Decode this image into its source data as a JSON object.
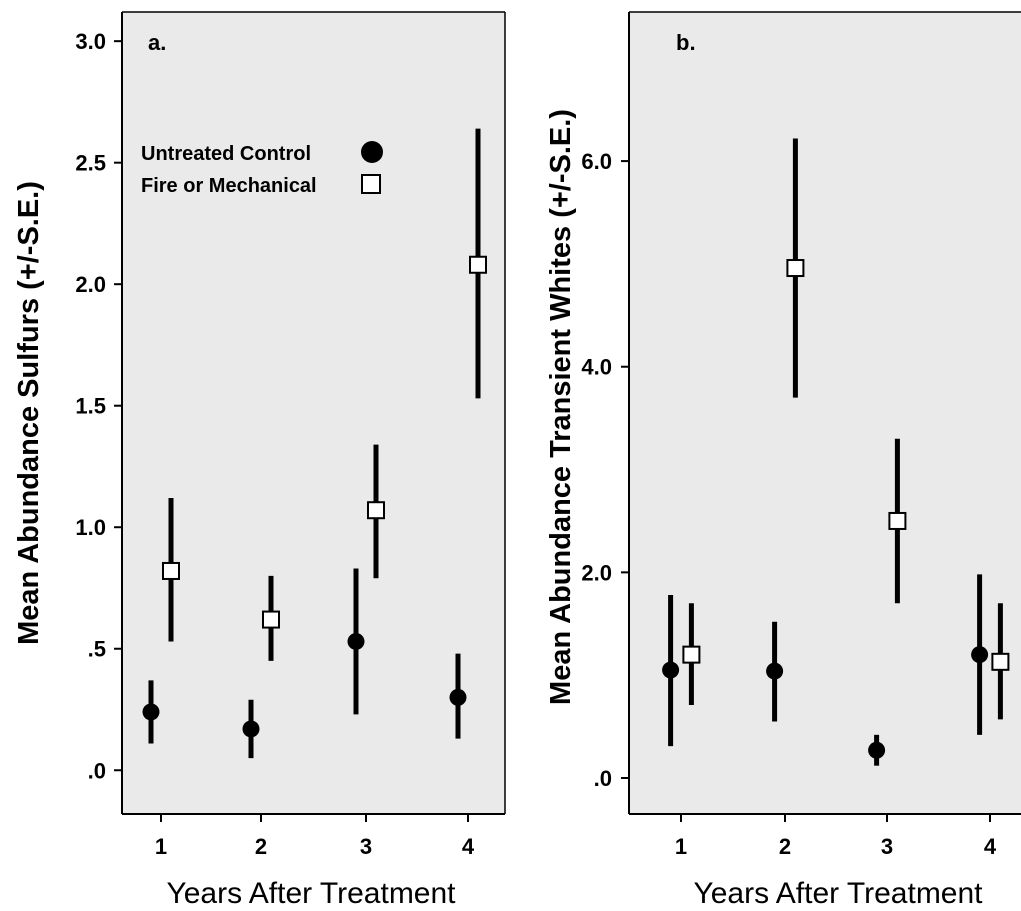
{
  "chart_data": [
    {
      "type": "scatter",
      "panel_label": "a.",
      "xlabel": "Years After Treatment",
      "ylabel": "Mean Abundance Sulfurs (+/-S.E.)",
      "categories": [
        "1",
        "2",
        "3",
        "4"
      ],
      "ytick_labels": [
        ".0",
        ".5",
        "1.0",
        "1.5",
        "2.0",
        "2.5",
        "3.0"
      ],
      "ytick_values": [
        0,
        0.5,
        1.0,
        1.5,
        2.0,
        2.5,
        3.0
      ],
      "ylim": [
        -0.18,
        3.12
      ],
      "grid": false,
      "background": "#eaeaea",
      "legend": {
        "placement": "top-left",
        "entries": [
          {
            "label": "Untreated Control",
            "marker": "filled-circle"
          },
          {
            "label": "Fire or Mechanical",
            "marker": "open-square"
          }
        ]
      },
      "series": [
        {
          "name": "Untreated Control",
          "marker": "filled-circle",
          "offset": -0.1,
          "values": [
            0.24,
            0.17,
            0.53,
            0.3
          ],
          "error_low": [
            0.11,
            0.05,
            0.23,
            0.13
          ],
          "error_high": [
            0.37,
            0.29,
            0.83,
            0.48
          ]
        },
        {
          "name": "Fire or Mechanical",
          "marker": "open-square",
          "offset": 0.1,
          "values": [
            0.82,
            0.62,
            1.07,
            2.08
          ],
          "error_low": [
            0.53,
            0.45,
            0.79,
            1.53
          ],
          "error_high": [
            1.12,
            0.8,
            1.34,
            2.64
          ]
        }
      ]
    },
    {
      "type": "scatter",
      "panel_label": "b.",
      "xlabel": "Years After Treatment",
      "ylabel": "Mean Abundance Transient Whites (+/-S.E.)",
      "categories": [
        "1",
        "2",
        "3",
        "4"
      ],
      "ytick_labels": [
        ".0",
        "2.0",
        "4.0",
        "6.0"
      ],
      "ytick_values": [
        0,
        2.0,
        4.0,
        6.0
      ],
      "ylim": [
        -0.35,
        7.45
      ],
      "grid": false,
      "background": "#eaeaea",
      "series": [
        {
          "name": "Untreated Control",
          "marker": "filled-circle",
          "offset": -0.1,
          "values": [
            1.05,
            1.04,
            0.27,
            1.2
          ],
          "error_low": [
            0.31,
            0.55,
            0.12,
            0.42
          ],
          "error_high": [
            1.78,
            1.52,
            0.42,
            1.98
          ]
        },
        {
          "name": "Fire or Mechanical",
          "marker": "open-square",
          "offset": 0.1,
          "values": [
            1.2,
            4.96,
            2.5,
            1.13
          ],
          "error_low": [
            0.71,
            3.7,
            1.7,
            0.57
          ],
          "error_high": [
            1.7,
            6.22,
            3.3,
            1.7
          ]
        }
      ]
    }
  ]
}
